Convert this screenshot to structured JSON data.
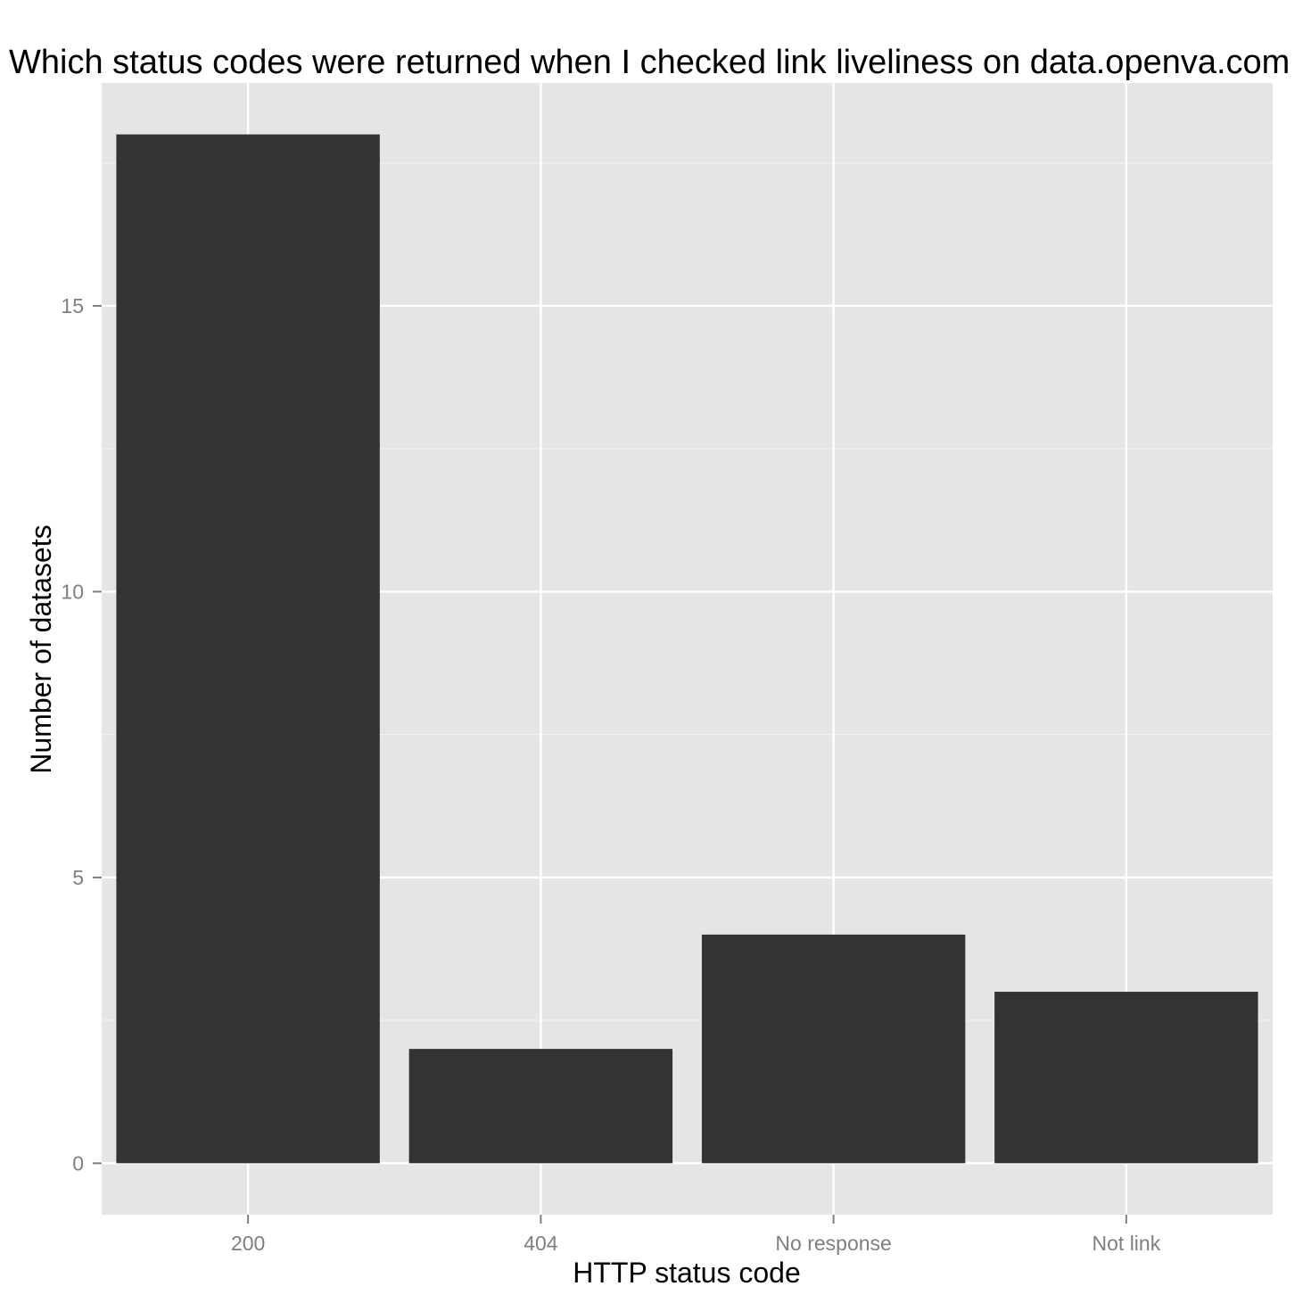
{
  "chart_data": {
    "type": "bar",
    "title": "Which status codes were returned when I checked link liveliness on data.openva.com",
    "xlabel": "HTTP status code",
    "ylabel": "Number of datasets",
    "categories": [
      "200",
      "404",
      "No response",
      "Not link"
    ],
    "values": [
      18,
      2,
      4,
      3
    ],
    "yticks": [
      0,
      5,
      10,
      15
    ],
    "ylim": [
      -0.9,
      18.9
    ],
    "grid": true,
    "legend": "none",
    "colors": {
      "bar": "#333333",
      "panel": "#e5e5e5",
      "grid_major": "#ffffff",
      "grid_minor": "#f2f2f2",
      "tick": "#7f7f7f"
    }
  }
}
